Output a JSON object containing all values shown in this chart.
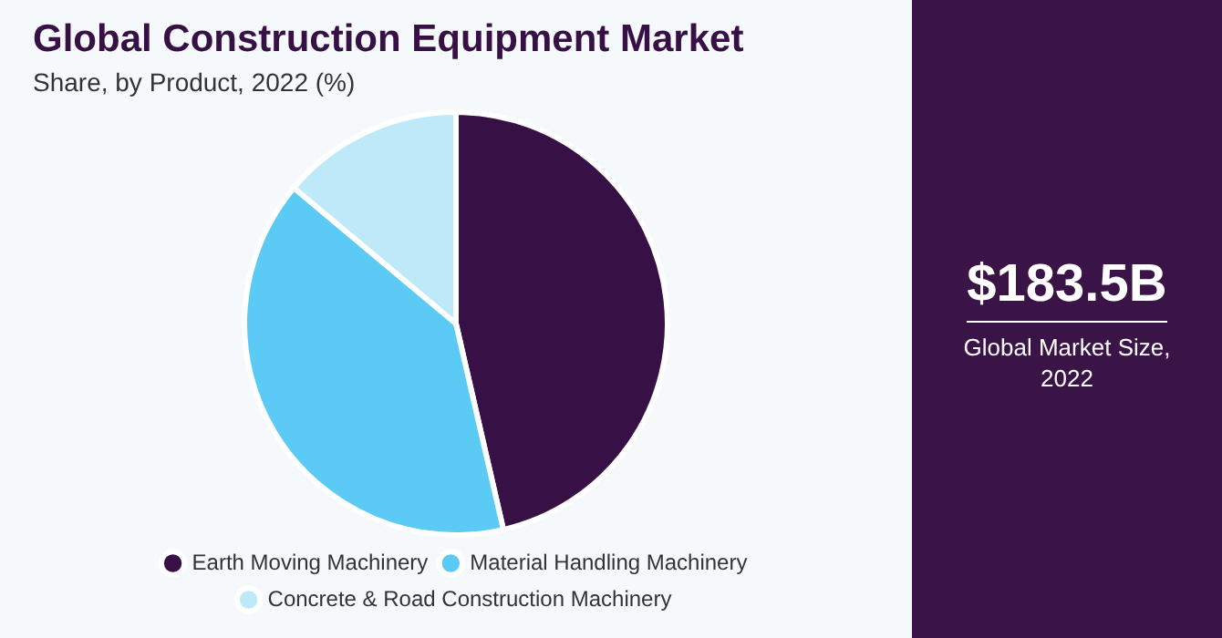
{
  "chart_data": {
    "type": "pie",
    "title": "Global Construction Equipment Market",
    "subtitle": "Share, by Product, 2022 (%)",
    "categories": [
      "Earth Moving Machinery",
      "Material Handling Machinery",
      "Concrete & Road Construction Machinery"
    ],
    "values": [
      46.4,
      39.7,
      13.9
    ],
    "colors": [
      "#371046",
      "#5bcbf5",
      "#bde9f9"
    ],
    "legend": "bottom",
    "annotations": [
      "$183.5B",
      "Global Market Size, 2022"
    ]
  }
}
